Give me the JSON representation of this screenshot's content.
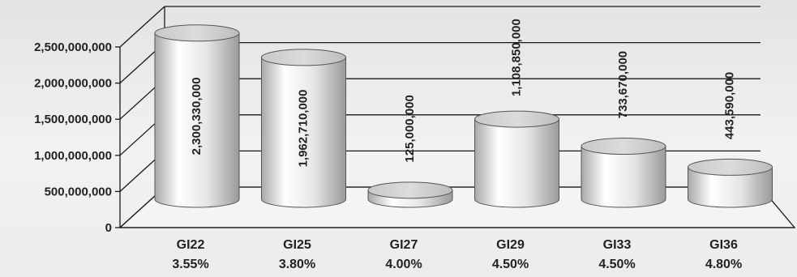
{
  "chart_data": {
    "type": "bar",
    "style": "3d-cylinder",
    "categories": [
      "GI22",
      "GI25",
      "GI27",
      "GI29",
      "GI33",
      "GI36"
    ],
    "rates": [
      "3.55%",
      "3.80%",
      "4.00%",
      "4.50%",
      "4.50%",
      "4.80%"
    ],
    "values": [
      2300330000,
      1962710000,
      125000000,
      1108850000,
      733670000,
      443590000
    ],
    "data_labels": [
      "2,300,330,000",
      "1,962,710,000",
      "125,000,000",
      "1,108,850,000",
      "733,670,000",
      "443,590,000"
    ],
    "yticks": [
      {
        "value": 0,
        "label": "0"
      },
      {
        "value": 500000000,
        "label": "500,000,000"
      },
      {
        "value": 1000000000,
        "label": "1,000,000,000"
      },
      {
        "value": 1500000000,
        "label": "1,500,000,000"
      },
      {
        "value": 2000000000,
        "label": "2,000,000,000"
      },
      {
        "value": 2500000000,
        "label": "2,500,000,000"
      }
    ],
    "ylim": [
      0,
      2500000000
    ],
    "grid": true,
    "title": "",
    "xlabel": "",
    "ylabel": "",
    "colors": {
      "bar_light": "#ffffff",
      "bar_dark": "#9a9a9a",
      "grid": "#1a1a1a",
      "text": "#222222"
    }
  }
}
